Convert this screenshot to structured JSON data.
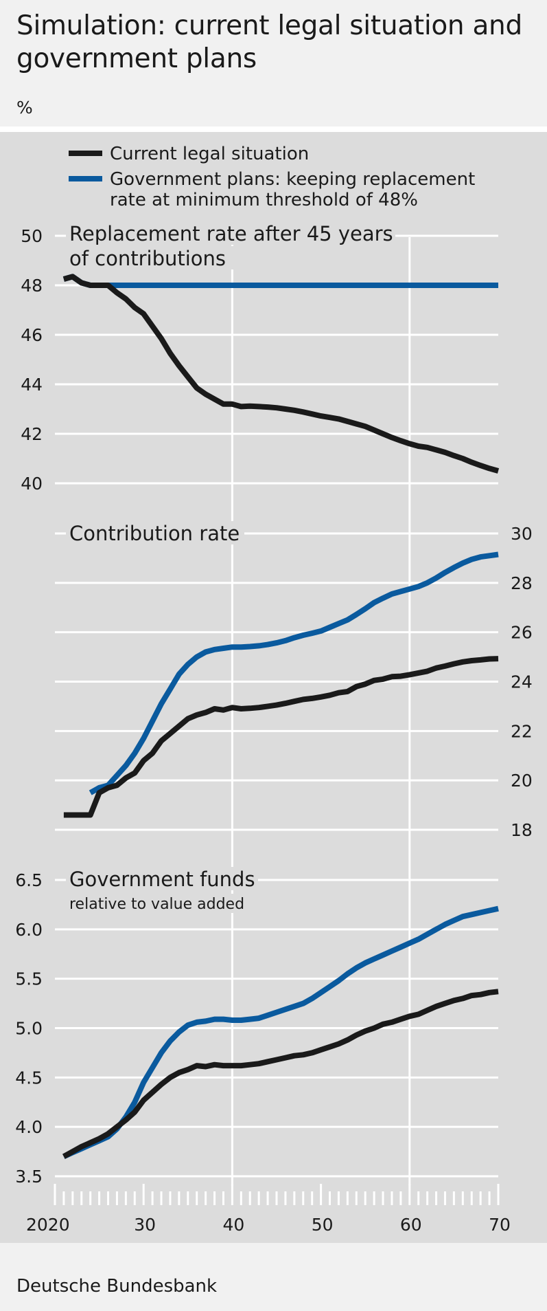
{
  "title": "Simulation: current legal situation and government plans",
  "unit": "%",
  "source": "Deutsche Bundesbank",
  "colors": {
    "current": "#1a1a1a",
    "government": "#0a5a9e",
    "panel": "#dcdcdc",
    "grid": "#ffffff"
  },
  "legend": [
    {
      "label": "Current legal situation",
      "color": "#1a1a1a"
    },
    {
      "label_line1": "Government plans: keeping replacement",
      "label_line2": "rate at minimum threshold of 48%",
      "color": "#0a5a9e"
    }
  ],
  "x_axis": {
    "labels": [
      "2020",
      "30",
      "40",
      "50",
      "60",
      "70"
    ],
    "label_years": [
      2020,
      2030,
      2040,
      2050,
      2060,
      2070
    ],
    "range": [
      2020,
      2070
    ]
  },
  "chart_data": [
    {
      "type": "line",
      "title": "Replacement rate after 45 years",
      "title_line2": "of contributions",
      "axis_side": "left",
      "ylim": [
        40,
        50
      ],
      "yticks": [
        40,
        42,
        44,
        46,
        48,
        50
      ],
      "ytick_labels": [
        "40",
        "42",
        "44",
        "46",
        "48",
        "50"
      ],
      "series": [
        {
          "name": "Current legal situation",
          "x": [
            2021,
            2022,
            2023,
            2024,
            2025,
            2026,
            2027,
            2028,
            2029,
            2030,
            2031,
            2032,
            2033,
            2034,
            2035,
            2036,
            2037,
            2038,
            2039,
            2040,
            2041,
            2042,
            2043,
            2044,
            2045,
            2046,
            2047,
            2048,
            2049,
            2050,
            2051,
            2052,
            2053,
            2054,
            2055,
            2056,
            2057,
            2058,
            2059,
            2060,
            2061,
            2062,
            2063,
            2064,
            2065,
            2066,
            2067,
            2068,
            2069,
            2070
          ],
          "values": [
            48.25,
            48.35,
            48.1,
            48.0,
            48.0,
            48.0,
            47.7,
            47.45,
            47.1,
            46.85,
            46.35,
            45.85,
            45.25,
            44.75,
            44.3,
            43.85,
            43.6,
            43.4,
            43.2,
            43.2,
            43.1,
            43.12,
            43.1,
            43.08,
            43.05,
            43.0,
            42.95,
            42.88,
            42.8,
            42.72,
            42.66,
            42.6,
            42.5,
            42.4,
            42.3,
            42.15,
            42.0,
            41.85,
            41.72,
            41.6,
            41.5,
            41.45,
            41.35,
            41.25,
            41.12,
            41.0,
            40.85,
            40.72,
            40.6,
            40.5
          ]
        },
        {
          "name": "Government plans",
          "x": [
            2021,
            2022,
            2023,
            2024,
            2025,
            2026,
            2027,
            2028,
            2029,
            2030,
            2040,
            2050,
            2060,
            2070
          ],
          "values": [
            48.25,
            48.35,
            48.1,
            48.0,
            48.0,
            48.0,
            48.0,
            48.0,
            48.0,
            48.0,
            48.0,
            48.0,
            48.0,
            48.0
          ]
        }
      ]
    },
    {
      "type": "line",
      "title": "Contribution rate",
      "axis_side": "right",
      "ylim": [
        18,
        30
      ],
      "yticks": [
        18,
        20,
        22,
        24,
        26,
        28,
        30
      ],
      "ytick_labels": [
        "18",
        "20",
        "22",
        "24",
        "26",
        "28",
        "30"
      ],
      "series": [
        {
          "name": "Current legal situation",
          "x": [
            2021,
            2022,
            2023,
            2024,
            2025,
            2026,
            2027,
            2028,
            2029,
            2030,
            2031,
            2032,
            2033,
            2034,
            2035,
            2036,
            2037,
            2038,
            2039,
            2040,
            2041,
            2042,
            2043,
            2044,
            2045,
            2046,
            2047,
            2048,
            2049,
            2050,
            2051,
            2052,
            2053,
            2054,
            2055,
            2056,
            2057,
            2058,
            2059,
            2060,
            2061,
            2062,
            2063,
            2064,
            2065,
            2066,
            2067,
            2068,
            2069,
            2070
          ],
          "values": [
            18.6,
            18.6,
            18.6,
            18.6,
            19.5,
            19.7,
            19.8,
            20.1,
            20.3,
            20.8,
            21.1,
            21.6,
            21.9,
            22.2,
            22.5,
            22.65,
            22.75,
            22.9,
            22.85,
            22.95,
            22.9,
            22.92,
            22.95,
            23.0,
            23.05,
            23.12,
            23.2,
            23.28,
            23.32,
            23.38,
            23.45,
            23.55,
            23.6,
            23.8,
            23.9,
            24.05,
            24.1,
            24.2,
            24.22,
            24.28,
            24.35,
            24.42,
            24.55,
            24.63,
            24.72,
            24.8,
            24.85,
            24.88,
            24.92,
            24.93
          ]
        },
        {
          "name": "Government plans",
          "x": [
            2024,
            2025,
            2026,
            2027,
            2028,
            2029,
            2030,
            2031,
            2032,
            2033,
            2034,
            2035,
            2036,
            2037,
            2038,
            2039,
            2040,
            2041,
            2042,
            2043,
            2044,
            2045,
            2046,
            2047,
            2048,
            2049,
            2050,
            2051,
            2052,
            2053,
            2054,
            2055,
            2056,
            2057,
            2058,
            2059,
            2060,
            2061,
            2062,
            2063,
            2064,
            2065,
            2066,
            2067,
            2068,
            2069,
            2070
          ],
          "values": [
            19.5,
            19.7,
            19.8,
            20.2,
            20.6,
            21.1,
            21.7,
            22.4,
            23.1,
            23.7,
            24.3,
            24.7,
            25.0,
            25.2,
            25.3,
            25.35,
            25.4,
            25.4,
            25.42,
            25.45,
            25.5,
            25.57,
            25.66,
            25.78,
            25.88,
            25.96,
            26.05,
            26.2,
            26.35,
            26.5,
            26.72,
            26.95,
            27.2,
            27.38,
            27.55,
            27.65,
            27.75,
            27.85,
            28.0,
            28.2,
            28.42,
            28.62,
            28.8,
            28.95,
            29.05,
            29.1,
            29.15
          ]
        }
      ]
    },
    {
      "type": "line",
      "title": "Government funds",
      "subtitle": "relative to value added",
      "axis_side": "left",
      "ylim": [
        3.5,
        6.5
      ],
      "yticks": [
        3.5,
        4.0,
        4.5,
        5.0,
        5.5,
        6.0,
        6.5
      ],
      "ytick_labels": [
        "3.5",
        "4.0",
        "4.5",
        "5.0",
        "5.5",
        "6.0",
        "6.5"
      ],
      "series": [
        {
          "name": "Current legal situation",
          "x": [
            2021,
            2022,
            2023,
            2024,
            2025,
            2026,
            2027,
            2028,
            2029,
            2030,
            2031,
            2032,
            2033,
            2034,
            2035,
            2036,
            2037,
            2038,
            2039,
            2040,
            2041,
            2042,
            2043,
            2044,
            2045,
            2046,
            2047,
            2048,
            2049,
            2050,
            2051,
            2052,
            2053,
            2054,
            2055,
            2056,
            2057,
            2058,
            2059,
            2060,
            2061,
            2062,
            2063,
            2064,
            2065,
            2066,
            2067,
            2068,
            2069,
            2070
          ],
          "values": [
            3.7,
            3.75,
            3.8,
            3.84,
            3.88,
            3.93,
            4.0,
            4.07,
            4.15,
            4.27,
            4.35,
            4.43,
            4.5,
            4.55,
            4.58,
            4.62,
            4.61,
            4.63,
            4.62,
            4.62,
            4.62,
            4.63,
            4.64,
            4.66,
            4.68,
            4.7,
            4.72,
            4.73,
            4.75,
            4.78,
            4.81,
            4.84,
            4.88,
            4.93,
            4.97,
            5.0,
            5.04,
            5.06,
            5.09,
            5.12,
            5.14,
            5.18,
            5.22,
            5.25,
            5.28,
            5.3,
            5.33,
            5.34,
            5.36,
            5.37
          ]
        },
        {
          "name": "Government plans",
          "x": [
            2021,
            2022,
            2023,
            2024,
            2025,
            2026,
            2027,
            2028,
            2029,
            2030,
            2031,
            2032,
            2033,
            2034,
            2035,
            2036,
            2037,
            2038,
            2039,
            2040,
            2041,
            2042,
            2043,
            2044,
            2045,
            2046,
            2047,
            2048,
            2049,
            2050,
            2051,
            2052,
            2053,
            2054,
            2055,
            2056,
            2057,
            2058,
            2059,
            2060,
            2061,
            2062,
            2063,
            2064,
            2065,
            2066,
            2067,
            2068,
            2069,
            2070
          ],
          "values": [
            3.7,
            3.74,
            3.78,
            3.82,
            3.86,
            3.9,
            3.98,
            4.1,
            4.25,
            4.45,
            4.6,
            4.75,
            4.87,
            4.96,
            5.03,
            5.06,
            5.07,
            5.09,
            5.09,
            5.08,
            5.08,
            5.09,
            5.1,
            5.13,
            5.16,
            5.19,
            5.22,
            5.25,
            5.3,
            5.36,
            5.42,
            5.48,
            5.55,
            5.61,
            5.66,
            5.7,
            5.74,
            5.78,
            5.82,
            5.86,
            5.9,
            5.95,
            6.0,
            6.05,
            6.09,
            6.13,
            6.15,
            6.17,
            6.19,
            6.21
          ]
        }
      ]
    }
  ]
}
